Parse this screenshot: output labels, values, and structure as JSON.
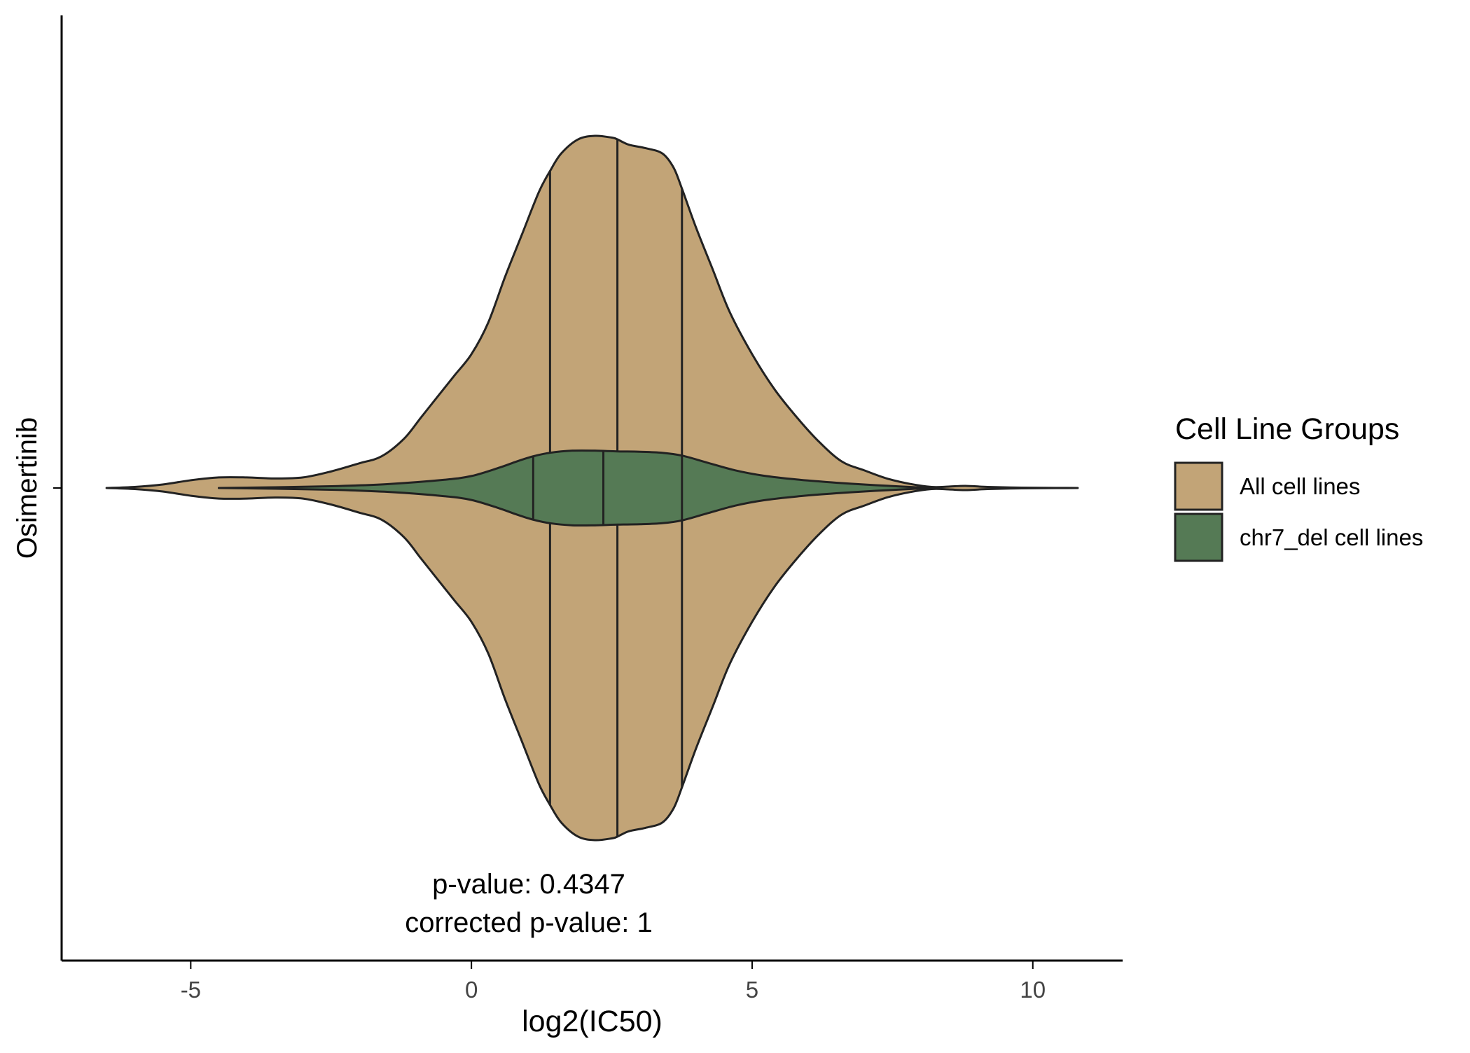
{
  "chart_data": {
    "type": "violin",
    "orientation": "horizontal",
    "xlabel": "log2(IC50)",
    "ylabel": "",
    "category": "Osimertinib",
    "xlim": [
      -7.3,
      11.6
    ],
    "xticks": [
      -5,
      0,
      5,
      10
    ],
    "grid": false,
    "legend": {
      "title": "Cell Line Groups",
      "position": "right",
      "entries": [
        "All cell lines",
        "chr7_del cell lines"
      ]
    },
    "annotation": {
      "pvalue_text": "p-value: 0.4347",
      "corrected_text": "corrected p-value: 1"
    },
    "series": [
      {
        "name": "All cell lines",
        "color": "#C2A477",
        "quantiles": [
          1.4,
          2.6,
          3.75
        ],
        "density": [
          [
            -6.5,
            0.0
          ],
          [
            -6.0,
            0.003
          ],
          [
            -5.5,
            0.01
          ],
          [
            -5.0,
            0.022
          ],
          [
            -4.5,
            0.03
          ],
          [
            -4.0,
            0.03
          ],
          [
            -3.5,
            0.027
          ],
          [
            -3.0,
            0.03
          ],
          [
            -2.5,
            0.047
          ],
          [
            -2.0,
            0.07
          ],
          [
            -1.6,
            0.09
          ],
          [
            -1.2,
            0.14
          ],
          [
            -0.9,
            0.2
          ],
          [
            -0.6,
            0.26
          ],
          [
            -0.3,
            0.32
          ],
          [
            0.0,
            0.38
          ],
          [
            0.3,
            0.47
          ],
          [
            0.6,
            0.6
          ],
          [
            0.9,
            0.72
          ],
          [
            1.2,
            0.84
          ],
          [
            1.4,
            0.9
          ],
          [
            1.6,
            0.95
          ],
          [
            1.9,
            0.99
          ],
          [
            2.2,
            1.0
          ],
          [
            2.5,
            0.995
          ],
          [
            2.6,
            0.99
          ],
          [
            2.8,
            0.975
          ],
          [
            3.1,
            0.965
          ],
          [
            3.4,
            0.95
          ],
          [
            3.6,
            0.91
          ],
          [
            3.75,
            0.85
          ],
          [
            4.0,
            0.74
          ],
          [
            4.3,
            0.62
          ],
          [
            4.6,
            0.5
          ],
          [
            5.0,
            0.38
          ],
          [
            5.4,
            0.28
          ],
          [
            5.8,
            0.2
          ],
          [
            6.2,
            0.13
          ],
          [
            6.6,
            0.075
          ],
          [
            7.0,
            0.05
          ],
          [
            7.4,
            0.027
          ],
          [
            7.8,
            0.012
          ],
          [
            8.2,
            0.003
          ],
          [
            8.5,
            0.004
          ],
          [
            8.8,
            0.006
          ],
          [
            9.2,
            0.003
          ],
          [
            9.8,
            0.001
          ],
          [
            10.4,
            0.0003
          ],
          [
            10.8,
            0.0
          ]
        ]
      },
      {
        "name": "chr7_del cell lines",
        "color": "#557A55",
        "quantiles": [
          1.1,
          2.35,
          3.75
        ],
        "density": [
          [
            -4.5,
            0.0
          ],
          [
            -3.5,
            0.002
          ],
          [
            -2.5,
            0.005
          ],
          [
            -1.5,
            0.011
          ],
          [
            -0.5,
            0.023
          ],
          [
            0.0,
            0.034
          ],
          [
            0.5,
            0.058
          ],
          [
            0.8,
            0.075
          ],
          [
            1.1,
            0.09
          ],
          [
            1.4,
            0.1
          ],
          [
            1.8,
            0.106
          ],
          [
            2.2,
            0.106
          ],
          [
            2.6,
            0.104
          ],
          [
            3.0,
            0.103
          ],
          [
            3.4,
            0.1
          ],
          [
            3.75,
            0.092
          ],
          [
            4.2,
            0.072
          ],
          [
            4.7,
            0.05
          ],
          [
            5.2,
            0.035
          ],
          [
            5.8,
            0.024
          ],
          [
            6.5,
            0.015
          ],
          [
            7.2,
            0.008
          ],
          [
            7.8,
            0.003
          ],
          [
            8.2,
            0.0
          ]
        ]
      }
    ]
  }
}
